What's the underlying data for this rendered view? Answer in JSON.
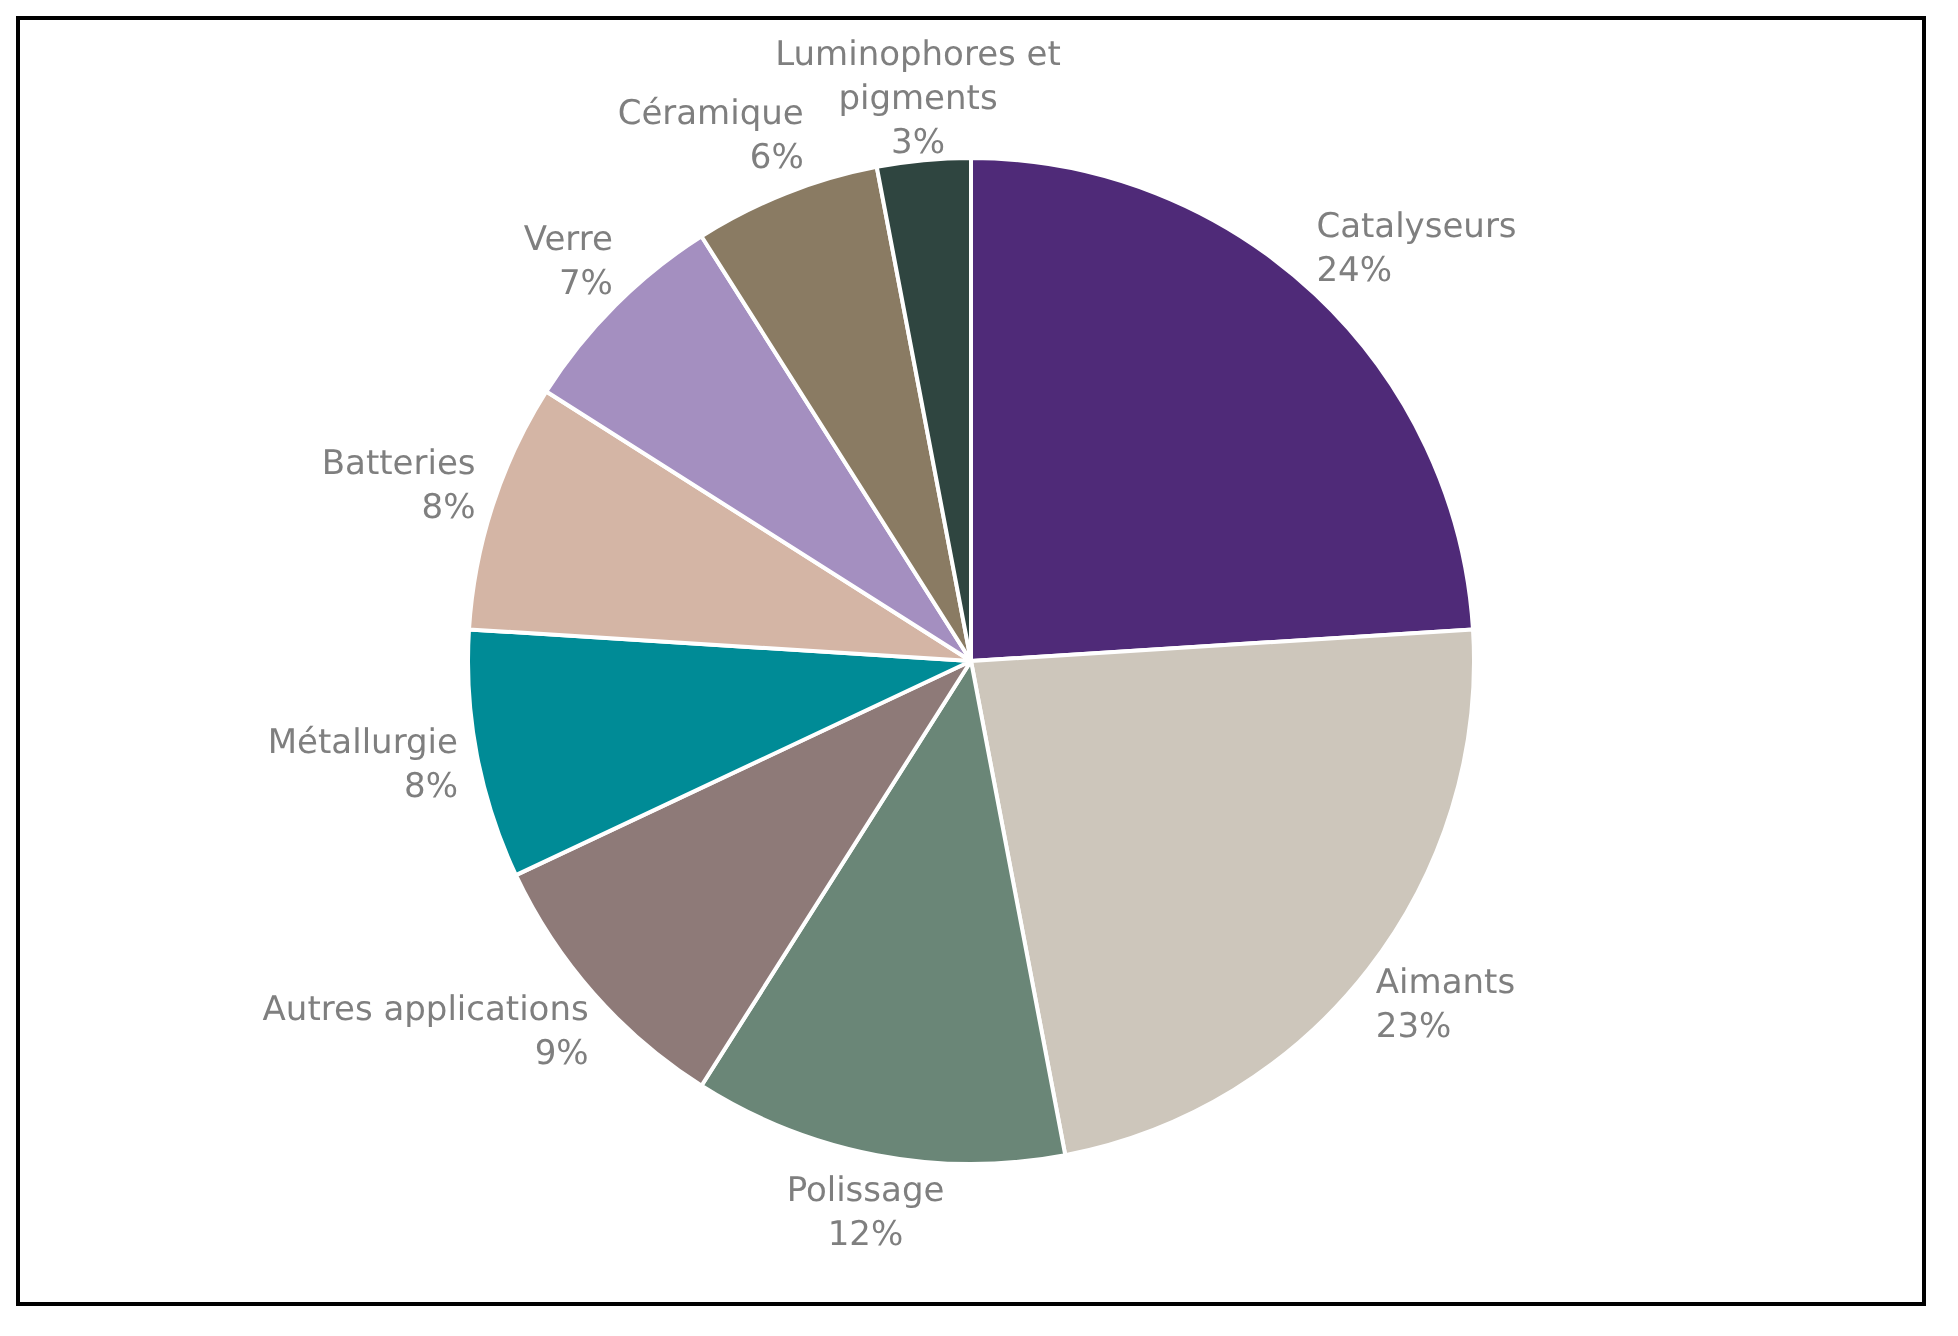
{
  "chart_data": {
    "type": "pie",
    "categories": [
      "Catalyseurs",
      "Aimants",
      "Polissage",
      "Autres applications",
      "Métallurgie",
      "Batteries",
      "Verre",
      "Céramique",
      "Luminophores et pigments"
    ],
    "values": [
      24,
      23,
      12,
      9,
      8,
      8,
      7,
      6,
      3
    ],
    "value_labels": [
      "24%",
      "23%",
      "12%",
      "9%",
      "8%",
      "8%",
      "7%",
      "6%",
      "3%"
    ],
    "colors": [
      "#4f2a78",
      "#cdc6bb",
      "#6a8677",
      "#8e7a78",
      "#008b96",
      "#d4b5a5",
      "#a48fc0",
      "#8a7b63",
      "#2f4540"
    ],
    "legend": false
  }
}
